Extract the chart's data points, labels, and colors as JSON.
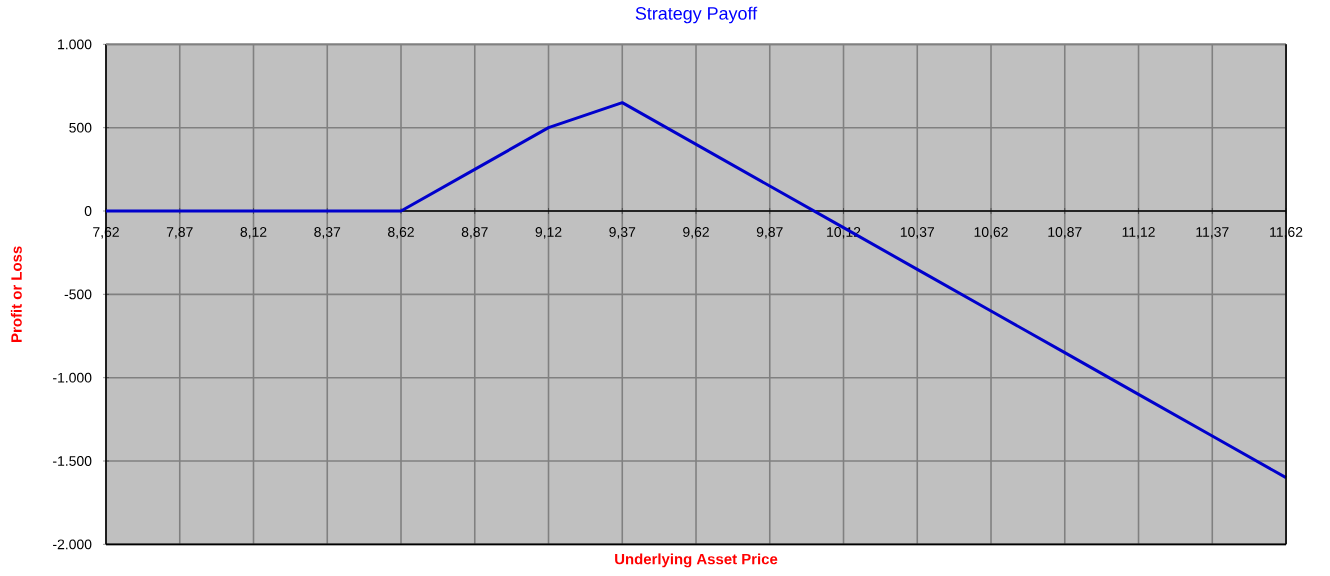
{
  "chart_data": {
    "type": "line",
    "title": "Strategy Payoff",
    "xlabel": "Underlying Asset Price",
    "ylabel": "Profit or Loss",
    "categories": [
      "7,62",
      "7,87",
      "8,12",
      "8,37",
      "8,62",
      "8,87",
      "9,12",
      "9,37",
      "9,62",
      "9,87",
      "10,12",
      "10,37",
      "10,62",
      "10,87",
      "11,12",
      "11,37",
      "11,62"
    ],
    "series": [
      {
        "color": "#0000cc",
        "values": [
          0,
          0,
          0,
          0,
          0,
          250,
          500,
          650,
          400,
          150,
          -100,
          -350,
          -600,
          -850,
          -1100,
          -1350,
          -1600
        ]
      }
    ],
    "ylim": [
      -2000,
      1000
    ],
    "yticks": [
      {
        "value": -2000,
        "label": "-2.000"
      },
      {
        "value": -1500,
        "label": "-1.500"
      },
      {
        "value": -1000,
        "label": "-1.000"
      },
      -500,
      0,
      500,
      {
        "value": 1000,
        "label": "1.000"
      }
    ],
    "grid": true,
    "marker": "none",
    "line_style": "solid"
  }
}
